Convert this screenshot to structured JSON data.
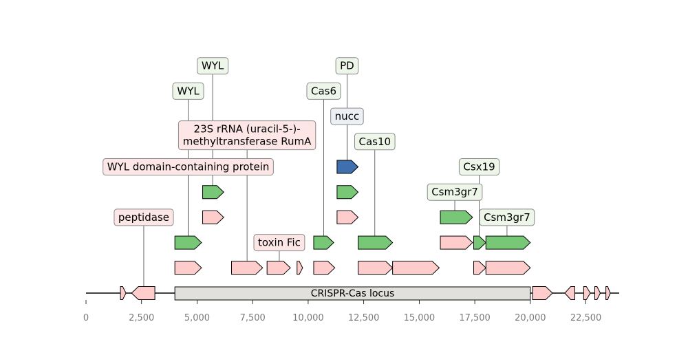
{
  "axis": {
    "ticks": [
      "0",
      "2,500",
      "5,000",
      "7,500",
      "10,000",
      "12,500",
      "15,000",
      "17,500",
      "20,000",
      "22,500"
    ]
  },
  "locus": {
    "label": "CRISPR-Cas locus",
    "start": 4000,
    "end": 20000,
    "fill": "#e2e0dc"
  },
  "colors": {
    "pink": "#ffcccc",
    "green": "#77c777",
    "blue": "#3f6fad",
    "label_pink": "#fde6e6",
    "label_green": "#eef6ea",
    "label_blue": "#eceff3",
    "stroke": "#000000",
    "label_stroke": "#8a8a8a"
  },
  "genes": [
    {
      "start": 1550,
      "end": 1800,
      "strand": 1,
      "row": 0,
      "color": "pink"
    },
    {
      "start": 2050,
      "end": 3100,
      "strand": -1,
      "row": 0,
      "color": "pink"
    },
    {
      "start": 20100,
      "end": 21000,
      "strand": 1,
      "row": 0,
      "color": "pink"
    },
    {
      "start": 21550,
      "end": 22000,
      "strand": -1,
      "row": 0,
      "color": "pink"
    },
    {
      "start": 22400,
      "end": 22700,
      "strand": 1,
      "row": 0,
      "color": "pink"
    },
    {
      "start": 22900,
      "end": 23150,
      "strand": 1,
      "row": 0,
      "color": "pink"
    },
    {
      "start": 23400,
      "end": 23600,
      "strand": 1,
      "row": 0,
      "color": "pink"
    },
    {
      "start": 4000,
      "end": 5200,
      "strand": 1,
      "row": 1,
      "color": "pink"
    },
    {
      "start": 6550,
      "end": 7950,
      "strand": 1,
      "row": 1,
      "color": "pink"
    },
    {
      "start": 8150,
      "end": 9200,
      "strand": 1,
      "row": 1,
      "color": "pink"
    },
    {
      "start": 9500,
      "end": 9750,
      "strand": 1,
      "row": 1,
      "color": "pink"
    },
    {
      "start": 10250,
      "end": 11200,
      "strand": 1,
      "row": 1,
      "color": "pink"
    },
    {
      "start": 12250,
      "end": 13800,
      "strand": 1,
      "row": 1,
      "color": "pink"
    },
    {
      "start": 13800,
      "end": 15900,
      "strand": 1,
      "row": 1,
      "color": "pink"
    },
    {
      "start": 17450,
      "end": 18000,
      "strand": 1,
      "row": 1,
      "color": "pink"
    },
    {
      "start": 18000,
      "end": 20000,
      "strand": 1,
      "row": 1,
      "color": "pink"
    },
    {
      "start": 4000,
      "end": 5200,
      "strand": 1,
      "row": 2,
      "color": "green"
    },
    {
      "start": 10250,
      "end": 11150,
      "strand": 1,
      "row": 2,
      "color": "green"
    },
    {
      "start": 12250,
      "end": 13800,
      "strand": 1,
      "row": 2,
      "color": "green"
    },
    {
      "start": 15950,
      "end": 17400,
      "strand": 1,
      "row": 2,
      "color": "pink"
    },
    {
      "start": 17450,
      "end": 18000,
      "strand": 1,
      "row": 2,
      "color": "green"
    },
    {
      "start": 18000,
      "end": 20000,
      "strand": 1,
      "row": 2,
      "color": "green"
    },
    {
      "start": 5250,
      "end": 6200,
      "strand": 1,
      "row": 3,
      "color": "pink"
    },
    {
      "start": 11300,
      "end": 12250,
      "strand": 1,
      "row": 3,
      "color": "pink"
    },
    {
      "start": 15950,
      "end": 17400,
      "strand": 1,
      "row": 3,
      "color": "green"
    },
    {
      "start": 5250,
      "end": 6200,
      "strand": 1,
      "row": 4,
      "color": "green"
    },
    {
      "start": 11300,
      "end": 12250,
      "strand": 1,
      "row": 4,
      "color": "green"
    },
    {
      "start": 11300,
      "end": 12250,
      "strand": 1,
      "row": 5,
      "color": "blue"
    }
  ],
  "labels": [
    {
      "text": "peptidase",
      "anchor": 2600,
      "line_from_row": 0,
      "level": 3,
      "style": "pink"
    },
    {
      "text": "WYL domain-containing protein",
      "anchor": 4600,
      "line_from_row": 2,
      "level": 5,
      "style": "pink"
    },
    {
      "text": "WYL",
      "anchor": 4600,
      "line_from_row": 2,
      "level": 8,
      "style": "green"
    },
    {
      "text": "WYL",
      "anchor": 5700,
      "line_from_row": 4,
      "level": 9,
      "style": "green"
    },
    {
      "text": "23S rRNA (uracil-5-)-\nmethyltransferase RumA",
      "anchor": 7250,
      "line_from_row": 1,
      "level": 6.25,
      "style": "pink"
    },
    {
      "text": "toxin Fic",
      "anchor": 8700,
      "line_from_row": 1,
      "level": 2,
      "style": "pink"
    },
    {
      "text": "Cas6",
      "anchor": 10700,
      "line_from_row": 2,
      "level": 8,
      "style": "green"
    },
    {
      "text": "nucc",
      "anchor": 11750,
      "line_from_row": 5,
      "level": 7,
      "style": "blue"
    },
    {
      "text": "PD",
      "anchor": 11750,
      "line_from_row": 5,
      "level": 9,
      "style": "green"
    },
    {
      "text": "Cas10",
      "anchor": 13000,
      "line_from_row": 2,
      "level": 6,
      "style": "green"
    },
    {
      "text": "Csm3gr7",
      "anchor": 16600,
      "line_from_row": 3,
      "level": 4,
      "style": "green"
    },
    {
      "text": "Csx19",
      "anchor": 17700,
      "line_from_row": 2,
      "level": 5,
      "style": "green"
    },
    {
      "text": "Csm3gr7",
      "anchor": 18950,
      "line_from_row": 2,
      "level": 3,
      "style": "green"
    }
  ]
}
